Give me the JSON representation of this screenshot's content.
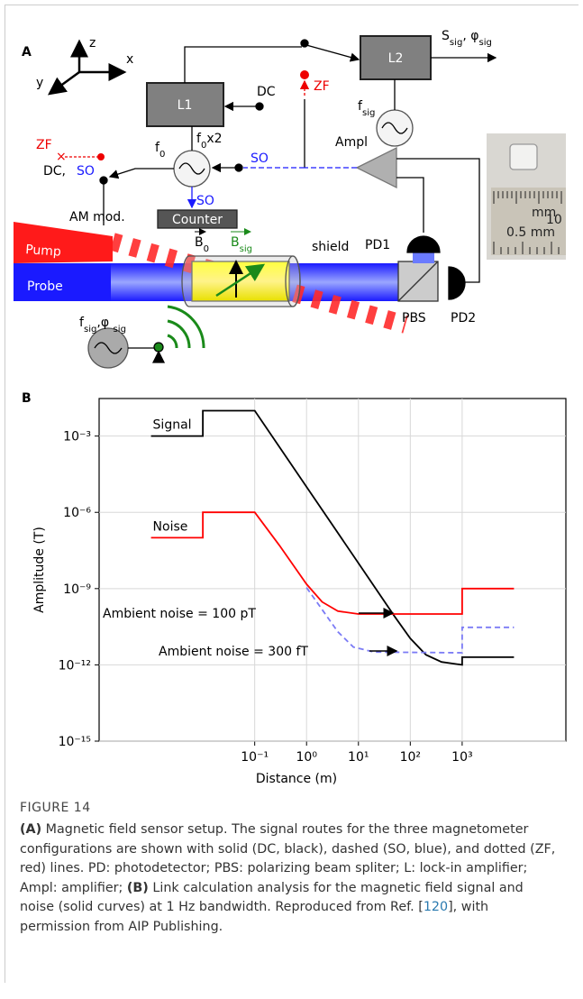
{
  "panel_a": {
    "label": "A",
    "axes": {
      "z": "z",
      "x": "x",
      "y": "y"
    },
    "l1": "L1",
    "l2": "L2",
    "output": [
      "S",
      "sig",
      ", φ",
      "sig"
    ],
    "f_sig": [
      "f",
      "sig"
    ],
    "dc_top": "DC",
    "zf_top": "ZF",
    "f0x2": [
      "f",
      "0",
      "x2"
    ],
    "f0": [
      "f",
      "0"
    ],
    "zf_left": "ZF",
    "dc_left": "DC,",
    "so_left": "SO",
    "so_right": "SO",
    "so_down": "SO",
    "counter": "Counter",
    "am_mod": "AM mod.",
    "ampl": "Ampl",
    "pump": "Pump",
    "probe": "Probe",
    "b0": [
      "B",
      "0"
    ],
    "bsig": [
      "B",
      "sig"
    ],
    "shield": "shield",
    "pd1": "PD1",
    "pd2": "PD2",
    "pbs": "PBS",
    "source": [
      "f",
      "sig",
      ",φ ",
      "sig"
    ],
    "ruler": {
      "unit": "mm",
      "number": "10",
      "scale": "0.5 mm"
    }
  },
  "panel_b_label": "B",
  "chart_data": {
    "type": "line",
    "x_label": "Distance (m)",
    "y_label": "Amplitude (T)",
    "x_log": true,
    "y_log": true,
    "grid": true,
    "xlim": [
      0.0001,
      100000
    ],
    "ylim": [
      1e-15,
      0.03
    ],
    "xticks": [
      {
        "value": 0.1,
        "label": "10⁻¹"
      },
      {
        "value": 1,
        "label": "10⁰"
      },
      {
        "value": 10,
        "label": "10¹"
      },
      {
        "value": 100,
        "label": "10²"
      },
      {
        "value": 1000,
        "label": "10³"
      }
    ],
    "yticks": [
      {
        "value": 1e-15,
        "label": "10⁻¹⁵"
      },
      {
        "value": 1e-12,
        "label": "10⁻¹²"
      },
      {
        "value": 1e-09,
        "label": "10⁻⁹"
      },
      {
        "value": 1e-06,
        "label": "10⁻⁶"
      },
      {
        "value": 0.001,
        "label": "10⁻³"
      }
    ],
    "series": [
      {
        "name": "Signal",
        "color": "#000000",
        "x": [
          0.001,
          0.01,
          0.01,
          0.1,
          1,
          10,
          50,
          100,
          200,
          400,
          1000,
          1000,
          10000
        ],
        "values": [
          0.001,
          0.001,
          0.01,
          0.01,
          1e-05,
          1e-08,
          8e-11,
          1.1e-11,
          2.5e-12,
          1.3e-12,
          1e-12,
          2e-12,
          2e-12
        ]
      },
      {
        "name": "Noise",
        "color": "#ff0000",
        "x": [
          0.001,
          0.01,
          0.01,
          0.1,
          0.3,
          1,
          2,
          4,
          10,
          1000,
          1000,
          10000
        ],
        "values": [
          1e-07,
          1e-07,
          1e-06,
          1e-06,
          5e-08,
          1.5e-09,
          3e-10,
          1.3e-10,
          1e-10,
          1e-10,
          1e-09,
          1e-09
        ]
      },
      {
        "color": "#7b7bf5",
        "dash": true,
        "x": [
          1,
          2,
          4,
          8,
          20,
          1000,
          1000,
          10000
        ],
        "values": [
          1.1e-09,
          1.5e-10,
          2e-11,
          5e-12,
          3.2e-12,
          3e-12,
          3e-11,
          3e-11
        ]
      }
    ],
    "annotations": [
      "Ambient noise = 100 pT",
      "Ambient noise = 300 fT"
    ]
  },
  "caption": {
    "label": "FIGURE 14",
    "parts": [
      "(A)",
      " Magnetic field sensor setup. The signal routes for the three magnetometer configurations are shown with solid (DC, black), dashed (SO, blue), and dotted (ZF, red) lines. PD: photodetector; PBS: polarizing beam spliter; L: lock-in amplifier; Ampl: amplifier; ",
      "(B)",
      " Link calculation analysis for the magnetic field signal and noise (solid curves) at 1 Hz bandwidth. Reproduced from Ref. [",
      "120",
      "], with permission from AIP Publishing."
    ]
  }
}
